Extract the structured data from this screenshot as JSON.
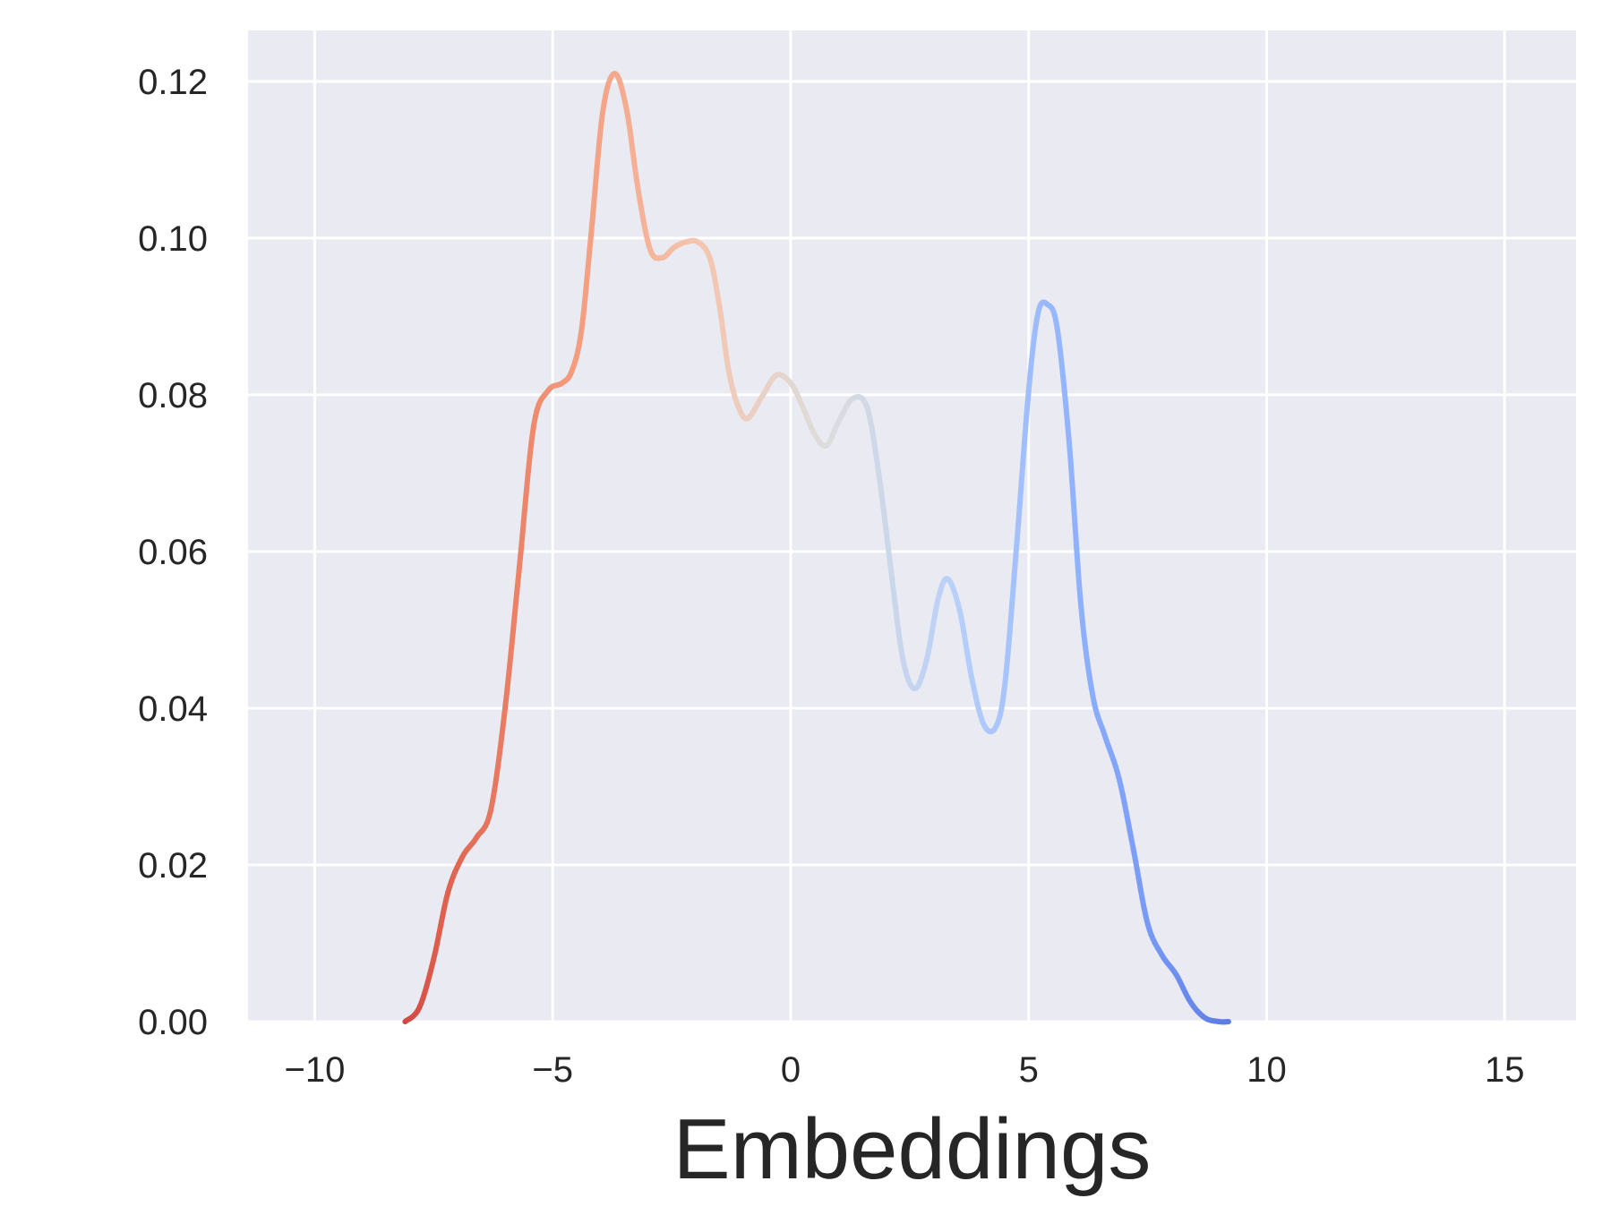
{
  "chart_data": {
    "type": "line",
    "xlabel": "Embeddings",
    "ylabel": "",
    "title": "",
    "xlim": [
      -11.4,
      16.5
    ],
    "ylim": [
      0,
      0.1265
    ],
    "xticks": [
      -10,
      -5,
      0,
      5,
      10,
      15
    ],
    "xtick_labels": [
      "−10",
      "−5",
      "0",
      "5",
      "10",
      "15"
    ],
    "yticks": [
      0,
      0.02,
      0.04,
      0.06,
      0.08,
      0.1,
      0.12
    ],
    "ytick_labels": [
      "0.00",
      "0.02",
      "0.04",
      "0.06",
      "0.08",
      "0.10",
      "0.12"
    ],
    "grid": true,
    "colormap": "coolwarm (red at left to blue at right)",
    "colors": {
      "background": "#eaeaf2",
      "grid": "#ffffff",
      "start": "#dd5044",
      "end": "#4f6ddd"
    },
    "series": [
      {
        "x": [
          -8.1,
          -7.8,
          -7.5,
          -7.2,
          -6.9,
          -6.6,
          -6.3,
          -6.0,
          -5.7,
          -5.4,
          -5.1,
          -4.8,
          -4.6,
          -4.4,
          -4.2,
          -3.95,
          -3.7,
          -3.45,
          -3.2,
          -2.95,
          -2.7,
          -2.45,
          -2.2,
          -1.95,
          -1.7,
          -1.5,
          -1.3,
          -1.1,
          -0.9,
          -0.6,
          -0.3,
          0.0,
          0.25,
          0.5,
          0.75,
          1.0,
          1.3,
          1.6,
          1.85,
          2.1,
          2.35,
          2.6,
          2.85,
          3.1,
          3.3,
          3.55,
          3.8,
          4.05,
          4.3,
          4.5,
          4.75,
          5.0,
          5.2,
          5.4,
          5.6,
          5.85,
          6.1,
          6.35,
          6.6,
          6.9,
          7.2,
          7.5,
          7.8,
          8.1,
          8.4,
          8.7,
          9.0,
          9.2
        ],
        "y": [
          0.0,
          0.0018,
          0.008,
          0.0165,
          0.021,
          0.0235,
          0.027,
          0.04,
          0.058,
          0.076,
          0.0805,
          0.0815,
          0.083,
          0.088,
          0.1,
          0.116,
          0.121,
          0.1165,
          0.106,
          0.0985,
          0.0975,
          0.0988,
          0.0995,
          0.0995,
          0.0975,
          0.0915,
          0.083,
          0.0785,
          0.077,
          0.0798,
          0.0825,
          0.0815,
          0.0785,
          0.075,
          0.0735,
          0.0765,
          0.0795,
          0.0785,
          0.07,
          0.058,
          0.0465,
          0.0425,
          0.046,
          0.054,
          0.0565,
          0.0525,
          0.044,
          0.038,
          0.0375,
          0.043,
          0.061,
          0.0805,
          0.0905,
          0.0915,
          0.0885,
          0.074,
          0.053,
          0.0415,
          0.0365,
          0.031,
          0.022,
          0.0125,
          0.0085,
          0.006,
          0.0025,
          0.0005,
          0.0,
          0.0
        ]
      }
    ]
  }
}
